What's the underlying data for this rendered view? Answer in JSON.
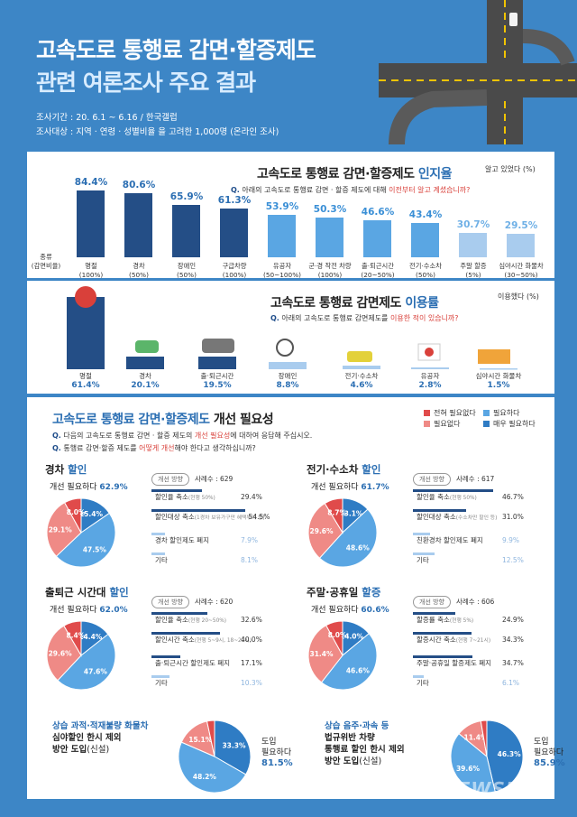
{
  "header": {
    "title_line1": "고속도로 통행료 감면·할증제도",
    "title_line2": "관련 여론조사 주요 결과",
    "period": "조사기간 : 20. 6.1 ~ 6.16  /  한국갤럽",
    "target": "조사대상 : 지역 · 연령 · 성별비율 을 고려한 1,000명 (온라인 조사)"
  },
  "awareness": {
    "title_plain": "고속도로 통행료 감면·할증제도 ",
    "title_bold": "인지율",
    "unit": "알고 있었다 (%)",
    "q_prefix": "Q.",
    "q_text": "아래의 고속도로 통행료 감면 · 할증 제도에 대해 ",
    "q_red": "이전부터 알고 계셨습니까?",
    "type_label_line1": "종류",
    "type_label_line2": "(감면비율)"
  },
  "usage": {
    "title_plain": "고속도로 통행료 감면제도 ",
    "title_bold": "이용률",
    "unit": "이용했다 (%)",
    "q_prefix": "Q.",
    "q_text": "아래의 고속도로 통행료 감면제도를 ",
    "q_red": "이용한 적이 있습니까?"
  },
  "improvement": {
    "title_plain": "고속도로 통행료 감면·할증제도 ",
    "title_bold": "개선 필요성",
    "q1_prefix": "Q.",
    "q1_text": "다음의 고속도로 통행료 감면 · 할증 제도의 ",
    "q1_red": "개선 필요성",
    "q1_tail": "에 대하여 응답해 주십시오.",
    "q2_prefix": "Q.",
    "q2_text": "통행료 감면·할증 제도를 ",
    "q2_red": "어떻게 개선",
    "q2_tail": "해야 한다고 생각하십니까?",
    "legend": [
      "전혀 필요없다",
      "필요하다",
      "필요없다",
      "매우 필요하다"
    ],
    "direction_label": "개선 방향",
    "blocks": [
      {
        "title_pre": "경차 ",
        "title_blue": "할인",
        "need_label": "개선 필요하다 ",
        "need_value": "62.9%",
        "sample": "사례수 : 629",
        "pie_labels": [
          "15.4%",
          "47.5%",
          "29.1%",
          "8.0%"
        ],
        "items": [
          {
            "label": "할인율 축소",
            "note": "(현행 50%)",
            "value": "29.4%"
          },
          {
            "label": "할인대상 축소",
            "note": "(1경차 보유가구만 혜택부여 등)",
            "value": "54.5%"
          },
          {
            "label": "경차 할인제도 폐지",
            "note": "",
            "value": "7.9%"
          },
          {
            "label": "기타",
            "note": "",
            "value": "8.1%"
          }
        ]
      },
      {
        "title_pre": "전기·수소차 ",
        "title_blue": "할인",
        "need_label": "개선 필요하다 ",
        "need_value": "61.7%",
        "sample": "사례수 : 617",
        "pie_labels": [
          "13.1%",
          "48.6%",
          "29.6%",
          "8.7%"
        ],
        "items": [
          {
            "label": "할인율 축소",
            "note": "(현행 50%)",
            "value": "46.7%"
          },
          {
            "label": "할인대상 축소",
            "note": "(수소차만 할인 등)",
            "value": "31.0%"
          },
          {
            "label": "친환경차 할인제도 폐지",
            "note": "",
            "value": "9.9%"
          },
          {
            "label": "기타",
            "note": "",
            "value": "12.5%"
          }
        ]
      },
      {
        "title_pre": "출퇴근 시간대 ",
        "title_blue": "할인",
        "need_label": "개선 필요하다 ",
        "need_value": "62.0%",
        "sample": "사례수 : 620",
        "pie_labels": [
          "14.4%",
          "47.6%",
          "29.6%",
          "8.4%"
        ],
        "items": [
          {
            "label": "할인율 축소",
            "note": "(현행 20~50%)",
            "value": "32.6%"
          },
          {
            "label": "할인시간 축소",
            "note": "(현행 5~9시, 18~22시)",
            "value": "40.0%"
          },
          {
            "label": "출·퇴근시간 할인제도 폐지",
            "note": "",
            "value": "17.1%"
          },
          {
            "label": "기타",
            "note": "",
            "value": "10.3%"
          }
        ]
      },
      {
        "title_pre": "주말·공휴일 ",
        "title_blue": "할증",
        "need_label": "개선 필요하다 ",
        "need_value": "60.6%",
        "sample": "사례수 : 606",
        "pie_labels": [
          "14.0%",
          "46.6%",
          "31.4%",
          "8.0%"
        ],
        "items": [
          {
            "label": "할증률 축소",
            "note": "(현행 5%)",
            "value": "24.9%"
          },
          {
            "label": "할증시간 축소",
            "note": "(현행 7~21시)",
            "value": "34.3%"
          },
          {
            "label": "주말·공휴일 할증제도 폐지",
            "note": "",
            "value": "34.7%"
          },
          {
            "label": "기타",
            "note": "",
            "value": "6.1%"
          }
        ]
      }
    ],
    "special": [
      {
        "line1": "상습 과적·적재불량 화물차",
        "line2": "심야할인 한시 제외",
        "line3_bold": "방안 도입",
        "line3_tail": "(신설)",
        "need_line1": "도입",
        "need_line2": "필요하다",
        "need_value": "81.5%",
        "pie_labels": [
          "33.3%",
          "48.2%",
          "15.1%",
          "3.4%"
        ]
      },
      {
        "line1": "상습 음주·과속 등",
        "line2": "법규위반 차량",
        "line3_bold": "통행료 할인 한시 제외",
        "line4_bold": "방안 도입",
        "line4_tail": "(신설)",
        "need_line1": "도입",
        "need_line2": "필요하다",
        "need_value": "85.9%",
        "pie_labels": [
          "46.3%",
          "39.6%",
          "11.4%",
          "2.7%"
        ]
      }
    ]
  },
  "credit": "NEWSIS",
  "colors": {
    "very_needed": "#2f7cc4",
    "needed": "#5aa6e3",
    "not_needed": "#ef8a86",
    "not_at_all": "#e04b4b",
    "dark_blue": "#244e86",
    "light_blue": "#a9ccee",
    "bg": "#3d86c6"
  },
  "chart_data": [
    {
      "type": "bar",
      "title": "고속도로 통행료 감면·할증제도 인지율",
      "ylabel": "알고 있었다 (%)",
      "categories": [
        "명절 (100%)",
        "경차 (50%)",
        "장애인 (50%)",
        "구급차량 (100%)",
        "유공자 (50~100%)",
        "군·경 작전 차량 (100%)",
        "출·퇴근시간 (20~50%)",
        "전기·수소차 (50%)",
        "주말 할증 (5%)",
        "심야시간 화물차 (30~50%)"
      ],
      "names": [
        "명절",
        "경차",
        "장애인",
        "구급차량",
        "유공자",
        "군·경 작전 차량",
        "출·퇴근시간",
        "전기·수소차",
        "주말 할증",
        "심야시간 화물차"
      ],
      "rates": [
        "(100%)",
        "(50%)",
        "(50%)",
        "(100%)",
        "(50~100%)",
        "(100%)",
        "(20~50%)",
        "(50%)",
        "(5%)",
        "(30~50%)"
      ],
      "values": [
        84.4,
        80.6,
        65.9,
        61.3,
        53.9,
        50.3,
        46.6,
        43.4,
        30.7,
        29.5
      ],
      "ylim": [
        0,
        100
      ]
    },
    {
      "type": "bar",
      "title": "고속도로 통행료 감면제도 이용률",
      "ylabel": "이용했다 (%)",
      "categories": [
        "명절",
        "경차",
        "출·퇴근시간",
        "장애인",
        "전기·수소차",
        "유공자",
        "심야시간 화물차"
      ],
      "values": [
        61.4,
        20.1,
        19.5,
        8.8,
        4.6,
        2.8,
        1.5
      ]
    },
    {
      "type": "pie",
      "title": "경차 할인",
      "categories": [
        "매우 필요하다",
        "필요하다",
        "필요없다",
        "전혀 필요없다"
      ],
      "values": [
        15.4,
        47.5,
        29.1,
        8.0
      ]
    },
    {
      "type": "pie",
      "title": "전기·수소차 할인",
      "categories": [
        "매우 필요하다",
        "필요하다",
        "필요없다",
        "전혀 필요없다"
      ],
      "values": [
        13.1,
        48.6,
        29.6,
        8.7
      ]
    },
    {
      "type": "pie",
      "title": "출퇴근 시간대 할인",
      "categories": [
        "매우 필요하다",
        "필요하다",
        "필요없다",
        "전혀 필요없다"
      ],
      "values": [
        14.4,
        47.6,
        29.6,
        8.4
      ]
    },
    {
      "type": "pie",
      "title": "주말·공휴일 할증",
      "categories": [
        "매우 필요하다",
        "필요하다",
        "필요없다",
        "전혀 필요없다"
      ],
      "values": [
        14.0,
        46.6,
        31.4,
        8.0
      ]
    },
    {
      "type": "pie",
      "title": "상습 과적·적재불량 화물차 심야할인 한시 제외 방안 도입(신설)",
      "categories": [
        "매우 필요하다",
        "필요하다",
        "필요없다",
        "전혀 필요없다"
      ],
      "values": [
        33.3,
        48.2,
        15.1,
        3.4
      ]
    },
    {
      "type": "pie",
      "title": "상습 음주·과속 등 법규위반 차량 통행료 할인 한시 제외 방안 도입(신설)",
      "categories": [
        "매우 필요하다",
        "필요하다",
        "필요없다",
        "전혀 필요없다"
      ],
      "values": [
        46.3,
        39.6,
        11.4,
        2.7
      ]
    }
  ]
}
